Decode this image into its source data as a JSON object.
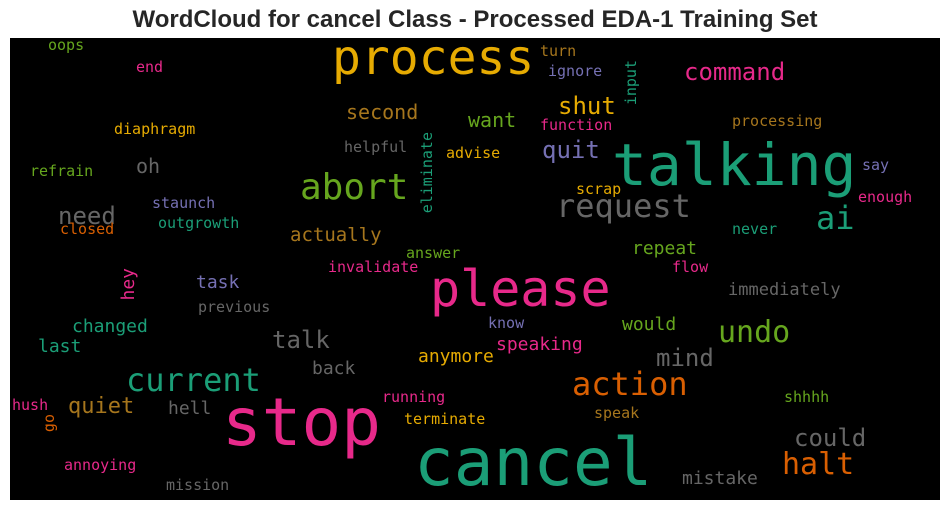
{
  "title": "WordCloud for cancel Class - Processed EDA-1 Training Set",
  "colors": {
    "background": "#000000",
    "pink": "#e7298a",
    "teal": "#1b9e77",
    "orange": "#d95f02",
    "gold": "#e6ab02",
    "green": "#66a61e",
    "purple": "#7570b3",
    "brown": "#a6761d",
    "gray": "#666666"
  },
  "words": [
    {
      "text": "stop",
      "color": "#e7298a"
    },
    {
      "text": "cancel",
      "color": "#1b9e77"
    },
    {
      "text": "talking",
      "color": "#1b9e77"
    },
    {
      "text": "please",
      "color": "#e7298a"
    },
    {
      "text": "process",
      "color": "#e6ab02"
    },
    {
      "text": "abort",
      "color": "#66a61e"
    },
    {
      "text": "request",
      "color": "#666666"
    },
    {
      "text": "current",
      "color": "#1b9e77"
    },
    {
      "text": "action",
      "color": "#d95f02"
    },
    {
      "text": "undo",
      "color": "#66a61e"
    },
    {
      "text": "halt",
      "color": "#d95f02"
    },
    {
      "text": "ai",
      "color": "#1b9e77"
    },
    {
      "text": "command",
      "color": "#e7298a"
    },
    {
      "text": "shut",
      "color": "#e6ab02"
    },
    {
      "text": "quit",
      "color": "#7570b3"
    },
    {
      "text": "need",
      "color": "#666666"
    },
    {
      "text": "talk",
      "color": "#666666"
    },
    {
      "text": "mind",
      "color": "#666666"
    },
    {
      "text": "could",
      "color": "#666666"
    },
    {
      "text": "quiet",
      "color": "#a6761d"
    },
    {
      "text": "second",
      "color": "#a6761d"
    },
    {
      "text": "want",
      "color": "#66a61e"
    },
    {
      "text": "oh",
      "color": "#666666"
    },
    {
      "text": "actually",
      "color": "#a6761d"
    },
    {
      "text": "repeat",
      "color": "#66a61e"
    },
    {
      "text": "task",
      "color": "#7570b3"
    },
    {
      "text": "changed",
      "color": "#1b9e77"
    },
    {
      "text": "last",
      "color": "#1b9e77"
    },
    {
      "text": "would",
      "color": "#66a61e"
    },
    {
      "text": "speaking",
      "color": "#e7298a"
    },
    {
      "text": "anymore",
      "color": "#e6ab02"
    },
    {
      "text": "back",
      "color": "#666666"
    },
    {
      "text": "hell",
      "color": "#666666"
    },
    {
      "text": "mistake",
      "color": "#666666"
    },
    {
      "text": "immediately",
      "color": "#666666"
    },
    {
      "text": "hey",
      "color": "#e7298a"
    },
    {
      "text": "oops",
      "color": "#66a61e"
    },
    {
      "text": "end",
      "color": "#e7298a"
    },
    {
      "text": "turn",
      "color": "#a6761d"
    },
    {
      "text": "ignore",
      "color": "#7570b3"
    },
    {
      "text": "input",
      "color": "#1b9e77"
    },
    {
      "text": "function",
      "color": "#e7298a"
    },
    {
      "text": "processing",
      "color": "#a6761d"
    },
    {
      "text": "diaphragm",
      "color": "#e6ab02"
    },
    {
      "text": "helpful",
      "color": "#666666"
    },
    {
      "text": "advise",
      "color": "#e6ab02"
    },
    {
      "text": "eliminate",
      "color": "#1b9e77"
    },
    {
      "text": "say",
      "color": "#7570b3"
    },
    {
      "text": "refrain",
      "color": "#66a61e"
    },
    {
      "text": "staunch",
      "color": "#7570b3"
    },
    {
      "text": "scrap",
      "color": "#e6ab02"
    },
    {
      "text": "enough",
      "color": "#e7298a"
    },
    {
      "text": "outgrowth",
      "color": "#1b9e77"
    },
    {
      "text": "closed",
      "color": "#d95f02"
    },
    {
      "text": "answer",
      "color": "#66a61e"
    },
    {
      "text": "never",
      "color": "#1b9e77"
    },
    {
      "text": "invalidate",
      "color": "#e7298a"
    },
    {
      "text": "flow",
      "color": "#e7298a"
    },
    {
      "text": "previous",
      "color": "#666666"
    },
    {
      "text": "know",
      "color": "#7570b3"
    },
    {
      "text": "hush",
      "color": "#e7298a"
    },
    {
      "text": "go",
      "color": "#d95f02"
    },
    {
      "text": "running",
      "color": "#e7298a"
    },
    {
      "text": "terminate",
      "color": "#e6ab02"
    },
    {
      "text": "shhhh",
      "color": "#66a61e"
    },
    {
      "text": "speak",
      "color": "#a6761d"
    },
    {
      "text": "annoying",
      "color": "#e7298a"
    },
    {
      "text": "mission",
      "color": "#666666"
    }
  ]
}
